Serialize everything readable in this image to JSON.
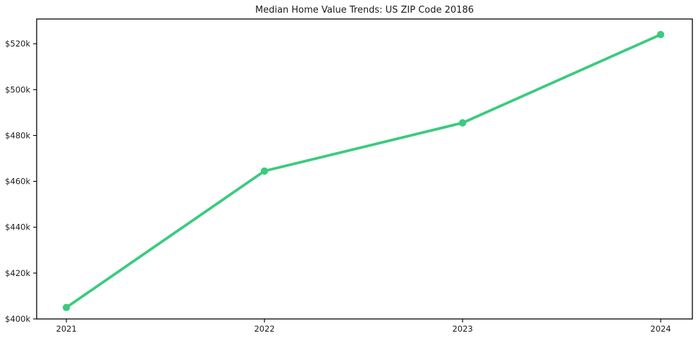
{
  "chart_data": {
    "type": "line",
    "title": "Median Home Value Trends: US ZIP Code 20186",
    "xlabel": "",
    "ylabel": "",
    "x": [
      2021,
      2022,
      2023,
      2024
    ],
    "x_tick_labels": [
      "2021",
      "2022",
      "2023",
      "2024"
    ],
    "y_ticks_usd": [
      400000,
      420000,
      440000,
      460000,
      480000,
      500000,
      520000
    ],
    "y_tick_labels": [
      "$400k",
      "$420k",
      "$440k",
      "$460k",
      "$480k",
      "$500k",
      "$520k"
    ],
    "series": [
      {
        "values_usd": [
          405000,
          464500,
          485500,
          524000
        ]
      }
    ],
    "xlim": [
      2020.85,
      2024.16
    ],
    "ylim_usd": [
      400000,
      530800
    ],
    "grid": false,
    "legend": false,
    "marker": "circle",
    "line_color": "#3bcb7e",
    "axis_color": "#000000",
    "text_color": "#1a1a1a",
    "background_color": "#ffffff"
  }
}
